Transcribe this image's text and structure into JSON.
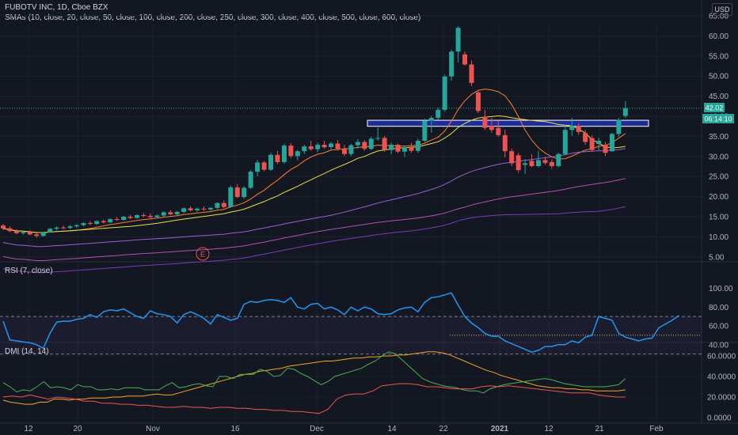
{
  "header": {
    "symbol_line": "FUBOTV INC, 1D, Cboe BZX",
    "sma_line": "SMAs (10, close, 20, close, 50, close, 100, close, 200, close, 250, close, 300, close, 400, close, 500, close, 600, close)",
    "currency_button": "USD"
  },
  "price_pane": {
    "y_ticks": [
      "65.00",
      "60.00",
      "55.00",
      "50.00",
      "45.00",
      "40.00",
      "35.00",
      "30.00",
      "25.00",
      "20.00",
      "15.00",
      "10.00",
      "5.00"
    ],
    "last_price_label": "42.02",
    "countdown_label": "06:14:10",
    "earnings_marker": "E",
    "colors": {
      "up": "#26a69a",
      "down": "#ef5350",
      "zone_fill": "#1e2fa8",
      "zone_border": "#ffffff"
    }
  },
  "rsi_pane": {
    "title": "RSI (7, close)",
    "y_ticks": [
      "100.00",
      "80.00",
      "60.00",
      "40.00"
    ],
    "line_color": "#2196f3"
  },
  "dmi_pane": {
    "title": "DMI (14, 14)",
    "y_ticks": [
      "60.0000",
      "40.0000",
      "20.0000",
      "0.0000"
    ],
    "colors": {
      "plus_di": "#4caf50",
      "minus_di": "#ef5350",
      "adx": "#f5a623"
    }
  },
  "x_axis": {
    "ticks": [
      "12",
      "20",
      "Nov",
      "16",
      "Dec",
      "14",
      "22",
      "2021",
      "12",
      "21",
      "Feb"
    ]
  },
  "chart_data": {
    "type": "candlestick",
    "title": "FUBOTV INC, 1D, Cboe BZX",
    "ylim": [
      3,
      68
    ],
    "ohlc": [
      [
        12.8,
        13.2,
        11.6,
        12.1
      ],
      [
        12.1,
        12.6,
        11.2,
        11.4
      ],
      [
        11.4,
        11.9,
        10.6,
        10.9
      ],
      [
        10.9,
        11.5,
        10.5,
        11.2
      ],
      [
        11.2,
        11.6,
        10.4,
        10.6
      ],
      [
        10.6,
        11.0,
        9.8,
        10.2
      ],
      [
        10.2,
        11.3,
        10.1,
        11.1
      ],
      [
        11.1,
        12.2,
        11.0,
        12.0
      ],
      [
        12.0,
        12.6,
        11.6,
        12.3
      ],
      [
        12.3,
        12.8,
        11.9,
        12.2
      ],
      [
        12.2,
        12.9,
        11.9,
        12.6
      ],
      [
        12.6,
        13.1,
        12.2,
        12.9
      ],
      [
        12.9,
        13.6,
        12.6,
        13.4
      ],
      [
        13.4,
        13.9,
        12.9,
        13.2
      ],
      [
        13.2,
        14.1,
        13.0,
        13.9
      ],
      [
        13.9,
        14.3,
        13.3,
        13.6
      ],
      [
        13.6,
        14.6,
        13.4,
        14.4
      ],
      [
        14.4,
        14.9,
        13.9,
        14.2
      ],
      [
        14.2,
        15.2,
        14.0,
        15.0
      ],
      [
        15.0,
        15.5,
        14.4,
        14.7
      ],
      [
        14.7,
        15.6,
        14.5,
        15.4
      ],
      [
        15.4,
        15.9,
        14.9,
        15.2
      ],
      [
        15.2,
        15.8,
        14.6,
        14.9
      ],
      [
        14.9,
        15.6,
        14.6,
        15.3
      ],
      [
        15.3,
        16.3,
        14.9,
        16.1
      ],
      [
        16.1,
        16.6,
        15.4,
        15.6
      ],
      [
        15.6,
        16.4,
        15.2,
        16.2
      ],
      [
        16.2,
        17.3,
        15.9,
        17.1
      ],
      [
        17.1,
        17.6,
        16.3,
        16.6
      ],
      [
        16.6,
        17.3,
        16.2,
        17.0
      ],
      [
        17.0,
        17.6,
        16.4,
        16.8
      ],
      [
        16.8,
        17.4,
        16.5,
        17.2
      ],
      [
        17.2,
        18.6,
        16.9,
        18.4
      ],
      [
        18.4,
        19.1,
        17.1,
        17.4
      ],
      [
        17.4,
        22.8,
        17.2,
        22.3
      ],
      [
        22.3,
        23.1,
        19.6,
        19.9
      ],
      [
        19.9,
        22.6,
        19.4,
        22.2
      ],
      [
        22.2,
        26.6,
        21.9,
        26.2
      ],
      [
        26.2,
        29.2,
        25.1,
        28.5
      ],
      [
        28.5,
        28.9,
        26.3,
        26.7
      ],
      [
        26.7,
        30.9,
        26.4,
        30.4
      ],
      [
        30.4,
        31.4,
        28.1,
        28.6
      ],
      [
        28.6,
        33.2,
        28.2,
        32.7
      ],
      [
        32.7,
        33.3,
        29.6,
        30.1
      ],
      [
        30.1,
        31.6,
        29.1,
        31.3
      ],
      [
        31.3,
        32.9,
        30.6,
        32.5
      ],
      [
        32.5,
        33.9,
        31.4,
        31.8
      ],
      [
        31.8,
        33.4,
        31.1,
        32.9
      ],
      [
        32.9,
        33.9,
        31.9,
        32.3
      ],
      [
        32.3,
        33.6,
        31.6,
        33.2
      ],
      [
        33.2,
        34.1,
        31.4,
        31.9
      ],
      [
        31.9,
        32.9,
        30.1,
        30.6
      ],
      [
        30.6,
        33.1,
        30.1,
        32.8
      ],
      [
        32.8,
        34.3,
        31.9,
        33.6
      ],
      [
        33.6,
        34.1,
        31.4,
        31.9
      ],
      [
        31.9,
        34.9,
        31.6,
        34.4
      ],
      [
        34.4,
        37.2,
        33.9,
        34.6
      ],
      [
        34.6,
        35.1,
        31.1,
        31.6
      ],
      [
        31.6,
        33.4,
        30.6,
        32.9
      ],
      [
        32.9,
        33.2,
        30.8,
        31.2
      ],
      [
        31.2,
        32.7,
        29.9,
        32.3
      ],
      [
        32.3,
        33.4,
        30.9,
        31.4
      ],
      [
        31.4,
        34.4,
        30.9,
        33.9
      ],
      [
        33.9,
        39.4,
        33.6,
        38.9
      ],
      [
        38.9,
        40.1,
        35.9,
        39.6
      ],
      [
        39.6,
        42.1,
        39.1,
        41.6
      ],
      [
        41.6,
        50.4,
        41.1,
        49.9
      ],
      [
        49.9,
        56.6,
        48.9,
        56.1
      ],
      [
        56.1,
        62.4,
        53.4,
        62.0
      ],
      [
        55.4,
        56.1,
        52.6,
        52.9
      ],
      [
        52.9,
        53.9,
        47.6,
        48.3
      ],
      [
        45.9,
        46.6,
        40.8,
        41.3
      ],
      [
        39.9,
        41.6,
        36.6,
        37.1
      ],
      [
        37.6,
        39.6,
        35.9,
        36.6
      ],
      [
        37.1,
        38.9,
        34.9,
        35.3
      ],
      [
        35.3,
        36.6,
        29.8,
        31.3
      ],
      [
        31.3,
        31.9,
        27.6,
        28.3
      ],
      [
        30.3,
        30.9,
        25.9,
        26.6
      ],
      [
        27.9,
        29.3,
        25.6,
        28.3
      ],
      [
        28.9,
        30.6,
        27.3,
        27.6
      ],
      [
        27.6,
        31.4,
        27.3,
        29.1
      ],
      [
        29.1,
        29.9,
        27.9,
        28.4
      ],
      [
        28.6,
        29.3,
        26.9,
        27.6
      ],
      [
        27.6,
        30.9,
        27.3,
        30.6
      ],
      [
        30.6,
        37.9,
        30.3,
        36.6
      ],
      [
        36.6,
        39.6,
        35.1,
        37.6
      ],
      [
        37.6,
        38.3,
        35.4,
        36.1
      ],
      [
        35.8,
        36.6,
        32.9,
        33.6
      ],
      [
        34.6,
        35.3,
        31.1,
        31.6
      ],
      [
        33.1,
        34.6,
        31.6,
        33.9
      ],
      [
        32.9,
        33.6,
        30.1,
        30.9
      ],
      [
        31.3,
        35.9,
        31.1,
        35.6
      ],
      [
        35.6,
        39.6,
        34.9,
        39.1
      ],
      [
        40.1,
        43.8,
        39.6,
        42.02
      ]
    ],
    "resistance_zone": [
      37.5,
      39.0
    ],
    "sma_series": [
      {
        "name": "SMA 10",
        "color": "#ff7f2a"
      },
      {
        "name": "SMA 20",
        "color": "#e8e04a"
      },
      {
        "name": "SMA 50",
        "color": "#9c5fd0"
      },
      {
        "name": "SMA 100",
        "color": "#b04fbf"
      },
      {
        "name": "SMA 200",
        "color": "#7a3bb8"
      }
    ],
    "rsi": {
      "overbought": 70,
      "oversold": 30,
      "ylim": [
        20,
        100
      ],
      "reference_level": 50,
      "values": [
        65,
        45,
        44,
        43,
        42,
        40,
        36,
        52,
        64,
        65,
        65,
        67,
        68,
        72,
        69,
        75,
        77,
        76,
        78,
        74,
        70,
        68,
        76,
        73,
        72,
        70,
        63,
        72,
        75,
        72,
        68,
        62,
        72,
        69,
        66,
        68,
        83,
        86,
        85,
        87,
        88,
        87,
        85,
        90,
        80,
        78,
        83,
        84,
        78,
        80,
        77,
        72,
        80,
        76,
        80,
        78,
        73,
        72,
        73,
        77,
        79,
        80,
        75,
        85,
        90,
        91,
        93,
        95,
        82,
        70,
        63,
        58,
        52,
        49,
        49,
        44,
        41,
        38,
        35,
        32,
        34,
        38,
        38,
        40,
        40,
        44,
        42,
        48,
        50,
        70,
        68,
        66,
        52,
        48,
        46,
        44,
        46,
        47,
        58,
        62,
        66,
        71
      ]
    },
    "dmi": {
      "ylim": [
        -2,
        68
      ],
      "plus_di": [
        34,
        30,
        25,
        27,
        26,
        30,
        35,
        29,
        30,
        29,
        27,
        32,
        30,
        30,
        27,
        27,
        28,
        27,
        29,
        29,
        29,
        27,
        27,
        27,
        31,
        34,
        29,
        30,
        32,
        33,
        31,
        30,
        40,
        40,
        38,
        42,
        42,
        42,
        47,
        45,
        40,
        41,
        48,
        47,
        43,
        40,
        36,
        32,
        35,
        40,
        42,
        44,
        46,
        48,
        52,
        55,
        60,
        64,
        62,
        56,
        50,
        44,
        38,
        35,
        33,
        31,
        30,
        29,
        27,
        26,
        26,
        24,
        28,
        30,
        32,
        33,
        34,
        35,
        36,
        37,
        38,
        37,
        35,
        33,
        32,
        31,
        30,
        30,
        30,
        30,
        31,
        32,
        38
      ],
      "minus_di": [
        20,
        21,
        20,
        22,
        20,
        18,
        20,
        19,
        18,
        16,
        16,
        14,
        14,
        13,
        13,
        12,
        12,
        11,
        10,
        10,
        11,
        10,
        10,
        9,
        10,
        10,
        9,
        9,
        8,
        8,
        7,
        7,
        6,
        6,
        5,
        4,
        8,
        18,
        22,
        23,
        23,
        26,
        31,
        32,
        33,
        33,
        32,
        30,
        30,
        29,
        28,
        28,
        28,
        30,
        31,
        30,
        31,
        30,
        29,
        28,
        27,
        26,
        25,
        24,
        24,
        24,
        22,
        21,
        20,
        20
      ],
      "adx": [
        17,
        15,
        14,
        13,
        13,
        15,
        15,
        18,
        18,
        17,
        18,
        18,
        19,
        19,
        19,
        20,
        20,
        21,
        21,
        21,
        22,
        23,
        22,
        22,
        24,
        26,
        28,
        30,
        32,
        34,
        36,
        38,
        40,
        42,
        43,
        45,
        46,
        47,
        48,
        50,
        51,
        52,
        53,
        54,
        55,
        55,
        56,
        57,
        58,
        58,
        59,
        59,
        60,
        60,
        61,
        61,
        62,
        63,
        64,
        64,
        63,
        61,
        58,
        55,
        52,
        49,
        46,
        44,
        41,
        39,
        37,
        35,
        33,
        31,
        30,
        29,
        29,
        28,
        28,
        27,
        27,
        26,
        26,
        26,
        26,
        27
      ]
    }
  }
}
